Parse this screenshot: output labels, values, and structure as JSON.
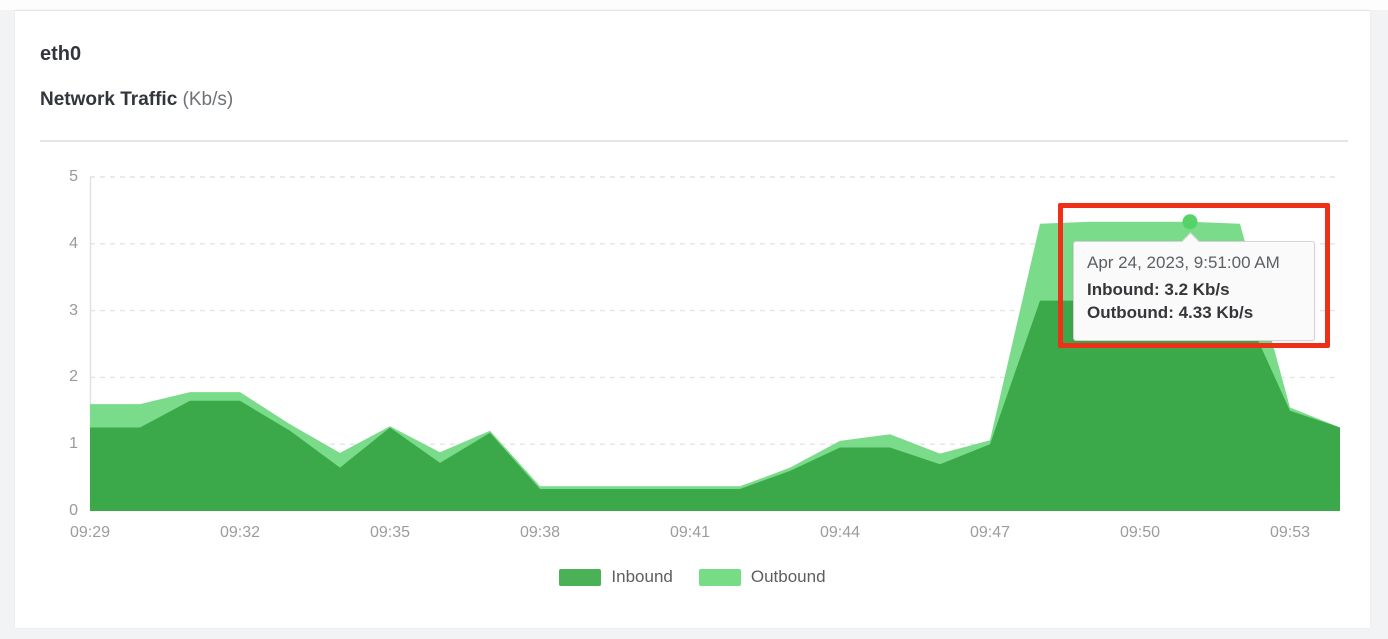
{
  "page": {
    "background_color": "#f2f3f5",
    "card_background": "#ffffff"
  },
  "header": {
    "title": "eth0",
    "subtitle": "Network Traffic",
    "subtitle_unit": "(Kb/s)"
  },
  "chart_data": {
    "type": "area",
    "overlap_mode": "overlaid (not stacked), Inbound drawn in front of Outbound",
    "title": "Network Traffic (Kb/s)",
    "xlabel": "",
    "ylabel": "Kb/s",
    "ylim": [
      0,
      5
    ],
    "y_ticks": [
      0,
      1,
      2,
      3,
      4,
      5
    ],
    "grid": "horizontal dashed gridlines, solid left axis line, no bottom axis line",
    "legend_position": "bottom center",
    "x": [
      "09:29",
      "09:30",
      "09:31",
      "09:32",
      "09:33",
      "09:34",
      "09:35",
      "09:36",
      "09:37",
      "09:38",
      "09:39",
      "09:40",
      "09:41",
      "09:42",
      "09:43",
      "09:44",
      "09:45",
      "09:46",
      "09:47",
      "09:48",
      "09:49",
      "09:50",
      "09:51",
      "09:52",
      "09:53",
      "09:54"
    ],
    "x_tick_labels": [
      "09:29",
      "09:32",
      "09:35",
      "09:38",
      "09:41",
      "09:44",
      "09:47",
      "09:50",
      "09:53"
    ],
    "series": [
      {
        "name": "Inbound",
        "color": "#3BA94A",
        "values": [
          1.25,
          1.25,
          1.65,
          1.65,
          1.2,
          0.65,
          1.25,
          0.72,
          1.17,
          0.33,
          0.33,
          0.33,
          0.33,
          0.33,
          0.6,
          0.95,
          0.95,
          0.7,
          1.0,
          3.15,
          3.15,
          3.15,
          3.2,
          3.15,
          1.5,
          1.25
        ]
      },
      {
        "name": "Outbound",
        "color": "#7ADC8A",
        "values": [
          1.6,
          1.6,
          1.78,
          1.78,
          1.3,
          0.87,
          1.27,
          0.88,
          1.2,
          0.37,
          0.37,
          0.37,
          0.37,
          0.37,
          0.65,
          1.05,
          1.15,
          0.86,
          1.06,
          4.3,
          4.33,
          4.33,
          4.33,
          4.3,
          1.55,
          1.25
        ]
      }
    ]
  },
  "legend": {
    "items": [
      {
        "label": "Inbound",
        "color": "#4BB157"
      },
      {
        "label": "Outbound",
        "color": "#76DD86"
      }
    ]
  },
  "marker": {
    "x": "09:51",
    "series": "Outbound",
    "value": 4.33,
    "color": "#55D369"
  },
  "tooltip": {
    "timestamp": "Apr 24, 2023, 9:51:00 AM",
    "lines": [
      "Inbound: 3.2 Kb/s",
      "Outbound: 4.33 Kb/s"
    ]
  },
  "annotation": {
    "type": "highlight-box",
    "color": "#EE3018"
  }
}
